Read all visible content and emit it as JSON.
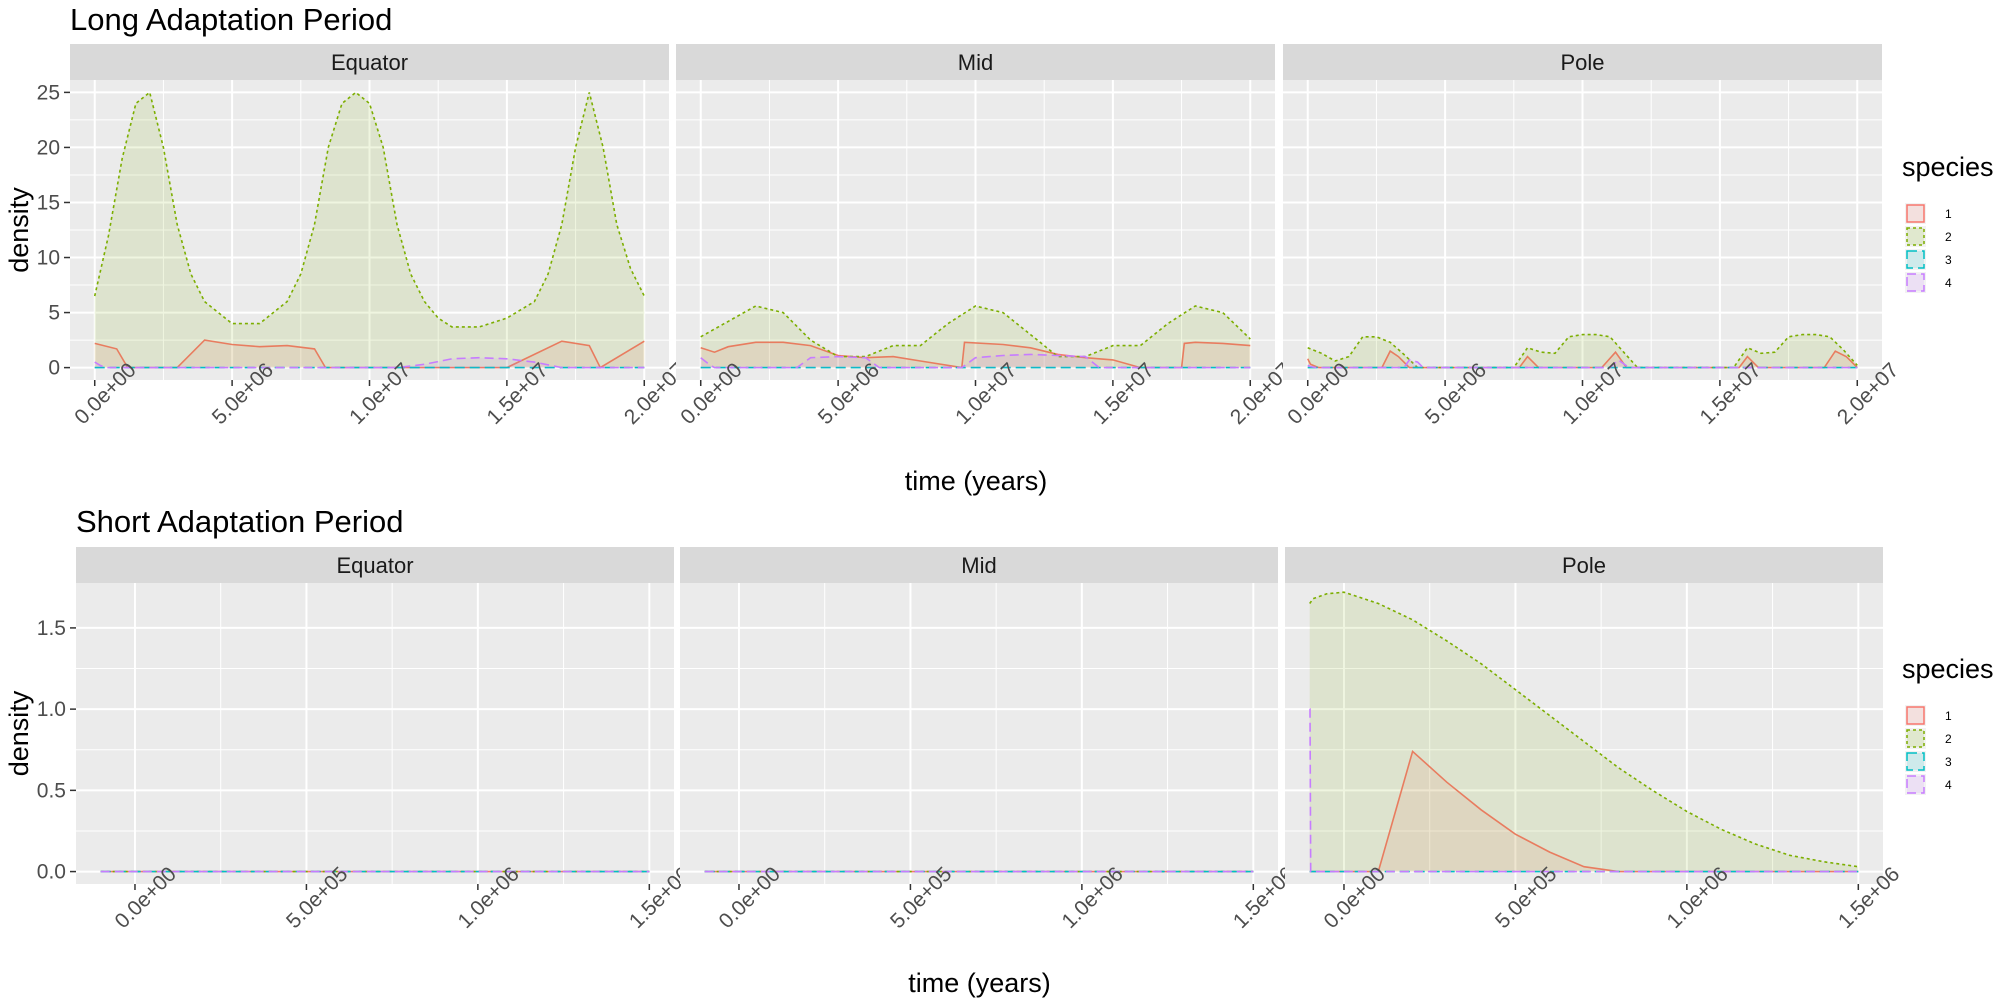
{
  "chart_data": [
    {
      "type": "area",
      "title": "Long Adaptation Period",
      "xlabel": "time (years)",
      "ylabel": "density",
      "xlim": [
        0,
        20000000
      ],
      "ylim": [
        0,
        25
      ],
      "x_ticks": [
        0,
        5000000,
        10000000,
        15000000,
        20000000
      ],
      "x_tick_labels": [
        "0.0e+00",
        "5.0e+06",
        "1.0e+07",
        "1.5e+07",
        "2.0e+07"
      ],
      "y_ticks": [
        0,
        5,
        10,
        15,
        20,
        25
      ],
      "y_tick_labels": [
        "0",
        "5",
        "10",
        "15",
        "20",
        "25"
      ],
      "grid": true,
      "legend": {
        "title": "species",
        "position": "right",
        "entries": [
          "1",
          "2",
          "3",
          "4"
        ]
      },
      "panels": [
        {
          "name": "Equator",
          "series": [
            {
              "name": "1",
              "x": [
                0,
                800000,
                1200000,
                2000000,
                3000000,
                4000000,
                5000000,
                6000000,
                7000000,
                8000000,
                8400000,
                9000000,
                12000000,
                15000000,
                17000000,
                18000000,
                18400000,
                20000000
              ],
              "y": [
                2.2,
                1.7,
                0,
                0,
                0,
                2.5,
                2.1,
                1.9,
                2.0,
                1.7,
                0,
                0,
                0,
                0,
                2.4,
                2.0,
                0,
                2.4
              ]
            },
            {
              "name": "2",
              "x": [
                0,
                500000,
                1000000,
                1500000,
                2000000,
                2500000,
                3000000,
                3500000,
                4000000,
                5000000,
                6000000,
                7000000,
                7500000,
                8000000,
                8500000,
                9000000,
                9500000,
                10000000,
                10500000,
                11000000,
                11500000,
                12000000,
                12500000,
                13000000,
                14000000,
                15000000,
                16000000,
                16500000,
                17000000,
                17500000,
                18000000,
                18500000,
                19000000,
                19500000,
                20000000
              ],
              "y": [
                6.5,
                12.0,
                19.0,
                24.0,
                25.0,
                20.0,
                13.0,
                8.5,
                6.0,
                4.0,
                4.0,
                6.0,
                8.5,
                13.0,
                20.0,
                24.0,
                25.0,
                24.0,
                20.0,
                13.0,
                8.5,
                6.0,
                4.5,
                3.7,
                3.7,
                4.5,
                6.0,
                8.5,
                13.0,
                20.0,
                25.0,
                20.0,
                13.0,
                9.0,
                6.5
              ]
            },
            {
              "name": "3",
              "x": [
                0,
                20000000
              ],
              "y": [
                0,
                0
              ]
            },
            {
              "name": "4",
              "x": [
                0,
                200000,
                400000,
                9000000,
                11000000,
                12000000,
                13000000,
                14000000,
                15000000,
                16000000,
                17000000,
                20000000
              ],
              "y": [
                0.5,
                0.2,
                0,
                0,
                0,
                0.3,
                0.8,
                0.9,
                0.8,
                0.5,
                0,
                0
              ]
            }
          ]
        },
        {
          "name": "Mid",
          "series": [
            {
              "name": "1",
              "x": [
                0,
                500000,
                1000000,
                2000000,
                3000000,
                4000000,
                5000000,
                6000000,
                7000000,
                8000000,
                9500000,
                9600000,
                11000000,
                12000000,
                13000000,
                14000000,
                15000000,
                16000000,
                17000000,
                17500000,
                17600000,
                18000000,
                19000000,
                20000000
              ],
              "y": [
                1.8,
                1.4,
                1.9,
                2.3,
                2.3,
                2.0,
                1.1,
                0.9,
                1.0,
                0.6,
                0,
                2.3,
                2.1,
                1.8,
                1.2,
                0.9,
                0.7,
                0,
                0,
                0,
                2.2,
                2.3,
                2.2,
                2.0
              ]
            },
            {
              "name": "2",
              "x": [
                0,
                1000000,
                2000000,
                3000000,
                4000000,
                5000000,
                6000000,
                7000000,
                8000000,
                9000000,
                10000000,
                11000000,
                12000000,
                13000000,
                14000000,
                15000000,
                16000000,
                17000000,
                18000000,
                19000000,
                20000000
              ],
              "y": [
                2.8,
                4.2,
                5.6,
                5.0,
                2.5,
                1.0,
                1.0,
                2.0,
                2.0,
                4.0,
                5.6,
                5.0,
                3.0,
                1.0,
                1.0,
                2.0,
                2.0,
                4.0,
                5.6,
                5.0,
                2.6
              ]
            },
            {
              "name": "3",
              "x": [
                0,
                20000000
              ],
              "y": [
                0,
                0
              ]
            },
            {
              "name": "4",
              "x": [
                0,
                300000,
                500000,
                3500000,
                4000000,
                5000000,
                6000000,
                6500000,
                9500000,
                10000000,
                11000000,
                12000000,
                13000000,
                14000000,
                14500000,
                20000000
              ],
              "y": [
                0.9,
                0.3,
                0,
                0,
                0.9,
                1.0,
                0.9,
                0,
                0,
                0.9,
                1.1,
                1.2,
                1.1,
                1.0,
                0,
                0
              ]
            }
          ]
        },
        {
          "name": "Pole",
          "series": [
            {
              "name": "1",
              "x": [
                0,
                100000,
                400000,
                2700000,
                3000000,
                3300000,
                3700000,
                7700000,
                8000000,
                8400000,
                10700000,
                11200000,
                11600000,
                15700000,
                16000000,
                16400000,
                18800000,
                19200000,
                19600000,
                20000000
              ],
              "y": [
                0.8,
                0.3,
                0,
                0,
                1.5,
                1.0,
                0,
                0,
                1.0,
                0,
                0,
                1.4,
                0,
                0,
                1.0,
                0,
                0,
                1.5,
                1.0,
                0
              ]
            },
            {
              "name": "2",
              "x": [
                0,
                500000,
                1000000,
                1500000,
                2000000,
                2500000,
                3000000,
                3500000,
                4000000,
                7500000,
                8000000,
                8500000,
                9000000,
                9500000,
                10000000,
                10500000,
                11000000,
                11500000,
                12000000,
                15500000,
                16000000,
                16500000,
                17000000,
                17500000,
                18000000,
                18500000,
                19000000,
                19500000,
                20000000
              ],
              "y": [
                1.8,
                1.3,
                0.6,
                1.0,
                2.8,
                2.8,
                2.3,
                1.2,
                0,
                0,
                1.8,
                1.4,
                1.3,
                2.8,
                3.0,
                3.0,
                2.8,
                1.4,
                0,
                0,
                1.8,
                1.3,
                1.4,
                2.8,
                3.0,
                3.0,
                2.8,
                1.6,
                0.2
              ]
            },
            {
              "name": "3",
              "x": [
                0,
                20000000
              ],
              "y": [
                0,
                0
              ]
            },
            {
              "name": "4",
              "x": [
                0,
                100000,
                300000,
                3500000,
                3700000,
                4000000,
                4200000,
                11000000,
                11300000,
                11700000,
                20000000
              ],
              "y": [
                0.2,
                0.1,
                0,
                0,
                0.7,
                0.5,
                0,
                0,
                0.7,
                0,
                0
              ]
            }
          ]
        }
      ]
    },
    {
      "type": "area",
      "title": "Short Adaptation Period",
      "xlabel": "time (years)",
      "ylabel": "density",
      "xlim": [
        -100000,
        1500000
      ],
      "ylim": [
        0,
        1.7
      ],
      "x_ticks": [
        0,
        500000,
        1000000,
        1500000
      ],
      "x_tick_labels": [
        "0.0e+00",
        "5.0e+05",
        "1.0e+06",
        "1.5e+06"
      ],
      "y_ticks": [
        0,
        0.5,
        1.0,
        1.5
      ],
      "y_tick_labels": [
        "0.0",
        "0.5",
        "1.0",
        "1.5"
      ],
      "grid": true,
      "legend": {
        "title": "species",
        "position": "right",
        "entries": [
          "1",
          "2",
          "3",
          "4"
        ]
      },
      "panels": [
        {
          "name": "Equator",
          "series": [
            {
              "name": "1",
              "x": [
                -100000,
                1500000
              ],
              "y": [
                0,
                0
              ]
            },
            {
              "name": "2",
              "x": [
                -100000,
                1500000
              ],
              "y": [
                0,
                0
              ]
            },
            {
              "name": "3",
              "x": [
                -100000,
                1500000
              ],
              "y": [
                0,
                0
              ]
            },
            {
              "name": "4",
              "x": [
                -100000,
                1500000
              ],
              "y": [
                0,
                0
              ]
            }
          ]
        },
        {
          "name": "Mid",
          "series": [
            {
              "name": "1",
              "x": [
                -100000,
                1500000
              ],
              "y": [
                0,
                0
              ]
            },
            {
              "name": "2",
              "x": [
                -100000,
                1500000
              ],
              "y": [
                0,
                0
              ]
            },
            {
              "name": "3",
              "x": [
                -100000,
                1500000
              ],
              "y": [
                0,
                0
              ]
            },
            {
              "name": "4",
              "x": [
                -100000,
                1500000
              ],
              "y": [
                0,
                0
              ]
            }
          ]
        },
        {
          "name": "Pole",
          "series": [
            {
              "name": "1",
              "x": [
                -100000,
                100000,
                200000,
                300000,
                400000,
                500000,
                600000,
                700000,
                800000,
                1500000
              ],
              "y": [
                0,
                0,
                0.74,
                0.55,
                0.38,
                0.23,
                0.12,
                0.03,
                0,
                0
              ]
            },
            {
              "name": "2",
              "x": [
                -100000,
                -90000,
                -50000,
                0,
                100000,
                200000,
                300000,
                400000,
                500000,
                600000,
                700000,
                800000,
                900000,
                1000000,
                1100000,
                1200000,
                1300000,
                1400000,
                1500000
              ],
              "y": [
                1.65,
                1.68,
                1.71,
                1.72,
                1.65,
                1.55,
                1.42,
                1.28,
                1.12,
                0.96,
                0.8,
                0.64,
                0.5,
                0.37,
                0.26,
                0.17,
                0.1,
                0.06,
                0.03
              ]
            },
            {
              "name": "3",
              "x": [
                -100000,
                1500000
              ],
              "y": [
                0,
                0
              ]
            },
            {
              "name": "4",
              "x": [
                -100000,
                -99000,
                -97000,
                1500000
              ],
              "y": [
                1.0,
                1.0,
                0,
                0
              ]
            }
          ]
        }
      ]
    }
  ],
  "colors": {
    "1": "#f8766d",
    "2": "#7cae00",
    "3": "#00bfc4",
    "4": "#c77cff",
    "panel_bg": "#ebebeb",
    "strip_bg": "#d9d9d9",
    "grid": "#ffffff"
  }
}
